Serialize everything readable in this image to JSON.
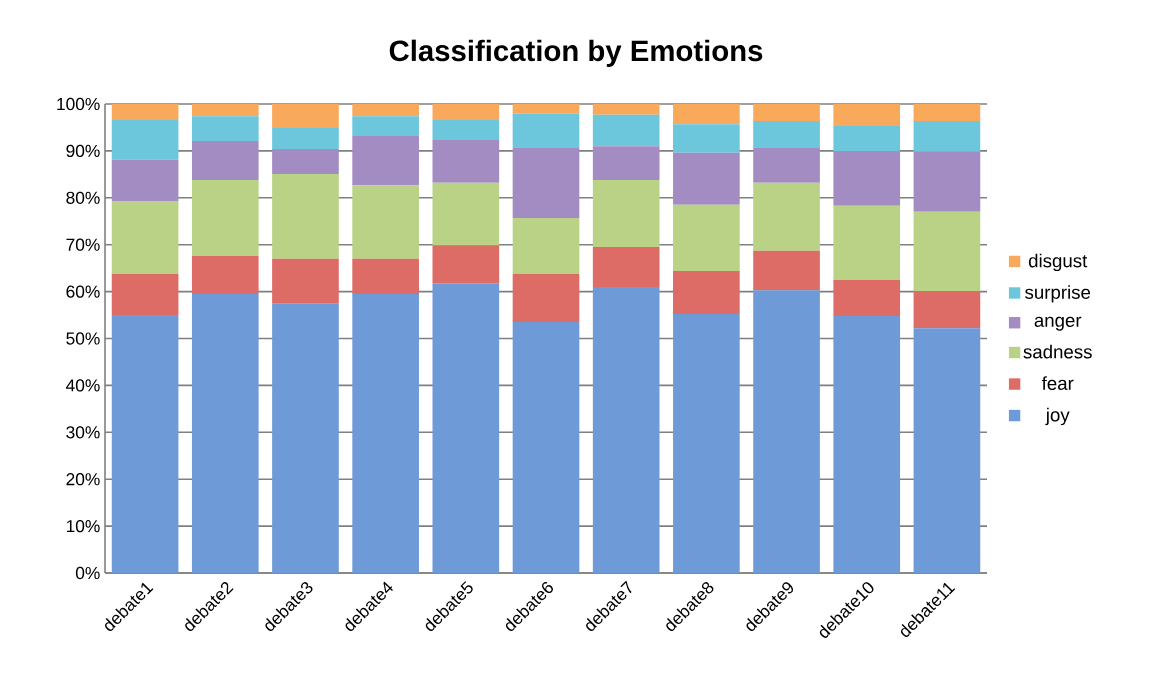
{
  "chart_data": {
    "type": "bar",
    "title": "Classification by Emotions",
    "stacked": true,
    "categories": [
      "debate1",
      "debate2",
      "debate3",
      "debate4",
      "debate5",
      "debate6",
      "debate7",
      "debate8",
      "debate9",
      "debate10",
      "debate11"
    ],
    "series": [
      {
        "name": "joy",
        "color": "#6f9ad8",
        "values": [
          55.0,
          59.5,
          57.4,
          59.5,
          61.8,
          53.5,
          61.0,
          55.2,
          60.3,
          54.8,
          52.2
        ]
      },
      {
        "name": "fear",
        "color": "#dd6b66",
        "values": [
          8.8,
          8.1,
          9.6,
          7.5,
          8.1,
          10.3,
          8.5,
          9.2,
          8.4,
          7.7,
          7.9
        ]
      },
      {
        "name": "sadness",
        "color": "#b9d286",
        "values": [
          15.5,
          16.2,
          18.1,
          15.7,
          13.3,
          11.9,
          14.3,
          14.1,
          14.5,
          15.8,
          16.9
        ]
      },
      {
        "name": "anger",
        "color": "#a28cc2",
        "values": [
          8.8,
          8.3,
          5.3,
          10.5,
          9.1,
          14.9,
          7.2,
          11.1,
          7.6,
          11.7,
          12.8
        ]
      },
      {
        "name": "surprise",
        "color": "#6cc6dc",
        "values": [
          8.5,
          5.3,
          4.5,
          4.2,
          4.3,
          7.3,
          6.7,
          6.1,
          5.6,
          5.3,
          6.6
        ]
      },
      {
        "name": "disgust",
        "color": "#f9a95c",
        "values": [
          3.4,
          2.6,
          5.1,
          2.6,
          3.4,
          2.1,
          2.3,
          4.3,
          3.6,
          4.7,
          3.6
        ]
      }
    ],
    "ylim": [
      0,
      100
    ],
    "yticks": [
      {
        "value": 0,
        "label": "0%"
      },
      {
        "value": 10,
        "label": "10%"
      },
      {
        "value": 20,
        "label": "20%"
      },
      {
        "value": 30,
        "label": "30%"
      },
      {
        "value": 40,
        "label": "40%"
      },
      {
        "value": 50,
        "label": "50%"
      },
      {
        "value": 60,
        "label": "60%"
      },
      {
        "value": 70,
        "label": "70%"
      },
      {
        "value": 80,
        "label": "80%"
      },
      {
        "value": 90,
        "label": "90%"
      },
      {
        "value": 100,
        "label": "100%"
      }
    ],
    "grid": "y",
    "legend": "right"
  }
}
